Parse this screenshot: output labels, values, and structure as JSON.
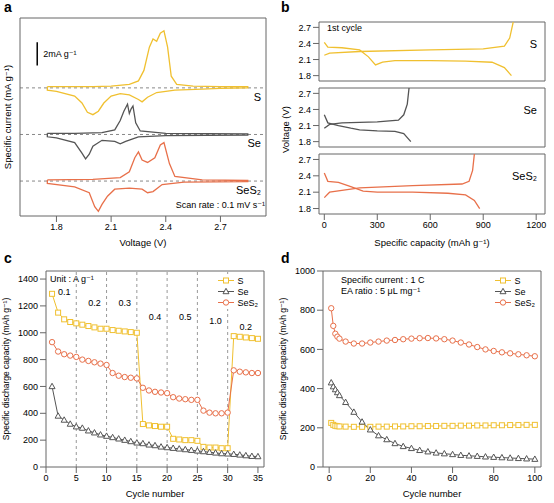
{
  "chart_data": [
    {
      "panel": "a",
      "type": "line",
      "x_label": "Voltage (V)",
      "y_label": "Specific current (mA g⁻¹)",
      "xlim": [
        1.6,
        2.95
      ],
      "xticks": [
        1.8,
        2.1,
        2.4,
        2.7
      ],
      "ylim": [
        -7,
        10
      ],
      "tick_labels": "x",
      "annotation": "Scan rate : 0.1 mV s⁻¹",
      "scale_bar": {
        "label": "2mA g⁻¹",
        "value": 2
      },
      "series": [
        {
          "name": "S",
          "color": "#f0c030",
          "baseline": 4,
          "x": [
            1.75,
            1.9,
            2.0,
            2.1,
            2.2,
            2.25,
            2.28,
            2.31,
            2.33,
            2.35,
            2.37,
            2.39,
            2.41,
            2.43,
            2.46,
            2.55,
            2.7,
            2.85,
            2.85,
            2.7,
            2.6,
            2.45,
            2.35,
            2.3,
            2.27,
            2.25,
            2.2,
            2.15,
            2.1,
            2.06,
            2.03,
            2.0,
            1.97,
            1.94,
            1.9,
            1.8,
            1.75,
            1.75
          ],
          "values": [
            4.1,
            4.1,
            4.1,
            4.15,
            4.3,
            4.6,
            5.5,
            7.5,
            8.2,
            8.0,
            8.7,
            8.9,
            7.5,
            5.0,
            4.3,
            4.15,
            4.1,
            4.1,
            4.0,
            3.95,
            3.9,
            3.8,
            3.6,
            3.2,
            2.8,
            3.0,
            3.4,
            3.5,
            3.3,
            2.7,
            2.0,
            1.7,
            1.9,
            2.7,
            3.3,
            3.7,
            3.8,
            4.1
          ]
        },
        {
          "name": "Se",
          "color": "#555555",
          "baseline": 0,
          "x": [
            1.75,
            1.9,
            2.05,
            2.12,
            2.15,
            2.17,
            2.19,
            2.2,
            2.21,
            2.22,
            2.235,
            2.26,
            2.4,
            2.85,
            2.85,
            2.4,
            2.25,
            2.18,
            2.15,
            2.12,
            2.05,
            2.0,
            1.98,
            1.96,
            1.94,
            1.9,
            1.8,
            1.75,
            1.75
          ],
          "values": [
            0.1,
            0.1,
            0.15,
            0.4,
            1.2,
            2.0,
            2.6,
            1.8,
            2.2,
            2.45,
            1.0,
            0.3,
            0.1,
            0.05,
            -0.05,
            -0.1,
            -0.2,
            -0.6,
            -0.8,
            -0.6,
            -0.5,
            -1.0,
            -1.7,
            -2.1,
            -1.6,
            -0.7,
            -0.3,
            -0.2,
            0.1
          ]
        },
        {
          "name": "SeS₂",
          "color": "#e8704a",
          "baseline": -4,
          "x": [
            1.75,
            2.0,
            2.15,
            2.2,
            2.23,
            2.25,
            2.27,
            2.3,
            2.34,
            2.37,
            2.39,
            2.42,
            2.45,
            2.6,
            2.85,
            2.85,
            2.5,
            2.38,
            2.33,
            2.3,
            2.27,
            2.2,
            2.12,
            2.08,
            2.05,
            2.03,
            2.01,
            1.98,
            1.9,
            1.75,
            1.75
          ],
          "values": [
            -3.9,
            -3.85,
            -3.7,
            -3.2,
            -2.0,
            -1.5,
            -2.2,
            -2.4,
            -2.0,
            -0.9,
            -0.7,
            -2.5,
            -3.6,
            -3.9,
            -3.95,
            -4.05,
            -4.1,
            -4.3,
            -4.9,
            -5.0,
            -4.7,
            -4.6,
            -4.7,
            -5.3,
            -6.0,
            -6.6,
            -6.2,
            -5.0,
            -4.5,
            -4.2,
            -3.9
          ]
        }
      ]
    },
    {
      "panel": "b",
      "type": "line",
      "annotation": "1st cycle",
      "x_label": "Specific capacity (mAh g⁻¹)",
      "y_label": "Voltage (V)",
      "xlim": [
        -30,
        1250
      ],
      "xticks": [
        0,
        300,
        600,
        900,
        1200
      ],
      "ylim": [
        1.7,
        2.8
      ],
      "yticks": [
        1.8,
        2.1,
        2.4,
        2.7
      ],
      "series": [
        {
          "name": "S",
          "color": "#f0c030",
          "curves": [
            {
              "x": [
                0,
                20,
                100,
                200,
                250,
                290,
                330,
                400,
                600,
                800,
                950,
                1020,
                1060
              ],
              "values": [
                2.42,
                2.33,
                2.32,
                2.28,
                2.15,
                2.0,
                2.05,
                2.08,
                2.08,
                2.07,
                2.05,
                1.95,
                1.8
              ]
            },
            {
              "x": [
                0,
                30,
                200,
                600,
                900,
                1020,
                1050,
                1070
              ],
              "values": [
                2.18,
                2.22,
                2.25,
                2.28,
                2.3,
                2.35,
                2.5,
                2.8
              ]
            }
          ]
        },
        {
          "name": "Se",
          "color": "#555555",
          "curves": [
            {
              "x": [
                0,
                20,
                80,
                150,
                200,
                300,
                400,
                450,
                490
              ],
              "values": [
                2.3,
                2.15,
                2.1,
                2.05,
                2.02,
                2.0,
                1.99,
                1.95,
                1.8
              ]
            },
            {
              "x": [
                0,
                30,
                100,
                300,
                420,
                450,
                470,
                480
              ],
              "values": [
                2.05,
                2.12,
                2.15,
                2.17,
                2.2,
                2.3,
                2.5,
                2.8
              ]
            }
          ]
        },
        {
          "name": "SeS₂",
          "color": "#e8704a",
          "curves": [
            {
              "x": [
                0,
                20,
                80,
                150,
                220,
                300,
                500,
                700,
                800,
                850,
                880
              ],
              "values": [
                2.45,
                2.3,
                2.28,
                2.2,
                2.12,
                2.1,
                2.1,
                2.08,
                2.05,
                1.95,
                1.8
              ]
            },
            {
              "x": [
                0,
                30,
                200,
                500,
                780,
                820,
                840,
                850
              ],
              "values": [
                2.0,
                2.1,
                2.18,
                2.22,
                2.25,
                2.3,
                2.5,
                2.8
              ]
            }
          ]
        }
      ]
    },
    {
      "panel": "c",
      "type": "line",
      "x_label": "Cycle number",
      "y_label": "Specific discharge capacity (mAh g⁻¹)",
      "xlim": [
        0,
        36
      ],
      "xticks": [
        0,
        5,
        10,
        15,
        20,
        25,
        30,
        35
      ],
      "ylim": [
        0,
        1460
      ],
      "yticks": [
        0,
        200,
        400,
        600,
        800,
        1000,
        1200,
        1400
      ],
      "legend": "top-right",
      "annotation": "Unit : A g⁻¹",
      "rate_labels": [
        {
          "label": "0.1",
          "cycles": [
            1,
            5
          ]
        },
        {
          "label": "0.2",
          "cycles": [
            6,
            10
          ]
        },
        {
          "label": "0.3",
          "cycles": [
            11,
            15
          ]
        },
        {
          "label": "0.4",
          "cycles": [
            16,
            20
          ]
        },
        {
          "label": "0.5",
          "cycles": [
            21,
            25
          ]
        },
        {
          "label": "1.0",
          "cycles": [
            26,
            30
          ]
        },
        {
          "label": "0.2",
          "cycles": [
            31,
            35
          ]
        }
      ],
      "dividers": [
        5,
        10,
        15,
        20,
        25,
        30
      ],
      "x": [
        1,
        2,
        3,
        4,
        5,
        6,
        7,
        8,
        9,
        10,
        11,
        12,
        13,
        14,
        15,
        16,
        17,
        18,
        19,
        20,
        21,
        22,
        23,
        24,
        25,
        26,
        27,
        28,
        29,
        30,
        31,
        32,
        33,
        34,
        35
      ],
      "series": [
        {
          "name": "S",
          "color": "#f0c030",
          "marker": "square",
          "line_style": "solid",
          "values": [
            1290,
            1150,
            1100,
            1080,
            1070,
            1060,
            1050,
            1040,
            1030,
            1030,
            1020,
            1015,
            1010,
            1005,
            1000,
            320,
            310,
            305,
            300,
            300,
            210,
            205,
            200,
            200,
            195,
            150,
            145,
            145,
            140,
            140,
            975,
            970,
            965,
            960,
            955
          ]
        },
        {
          "name": "Se",
          "color": "#555555",
          "marker": "triangle",
          "line_style": "solid",
          "values": [
            600,
            380,
            350,
            320,
            300,
            290,
            270,
            255,
            240,
            230,
            220,
            210,
            200,
            190,
            180,
            175,
            165,
            160,
            150,
            145,
            140,
            135,
            130,
            125,
            120,
            115,
            110,
            105,
            100,
            98,
            95,
            90,
            85,
            80,
            78
          ]
        },
        {
          "name": "SeS₂",
          "color": "#e8704a",
          "marker": "circle",
          "line_style": "solid",
          "values": [
            930,
            860,
            840,
            830,
            820,
            800,
            790,
            780,
            770,
            760,
            700,
            680,
            670,
            665,
            660,
            590,
            570,
            560,
            555,
            550,
            520,
            510,
            505,
            500,
            500,
            420,
            405,
            400,
            400,
            405,
            720,
            710,
            705,
            700,
            700
          ]
        }
      ]
    },
    {
      "panel": "d",
      "type": "line",
      "x_label": "Cycle number",
      "y_label": "Specific discharge capacity (mAh g⁻¹)",
      "xlim": [
        -3,
        103
      ],
      "xticks": [
        0,
        20,
        40,
        60,
        80,
        100
      ],
      "ylim": [
        0,
        1000
      ],
      "yticks": [
        0,
        200,
        400,
        600,
        800,
        1000
      ],
      "legend": "top-right",
      "annotations": [
        "Specific current : 1 C",
        "EA ratio : 5 μL mg⁻¹"
      ],
      "x": [
        1,
        2,
        3,
        4,
        5,
        8,
        12,
        16,
        20,
        24,
        28,
        32,
        36,
        40,
        44,
        48,
        52,
        56,
        60,
        64,
        68,
        72,
        76,
        80,
        84,
        88,
        92,
        96,
        100
      ],
      "series": [
        {
          "name": "S",
          "color": "#f0c030",
          "marker": "square",
          "line_style": "solid",
          "values": [
            225,
            215,
            210,
            208,
            207,
            206,
            205,
            205,
            205,
            206,
            206,
            207,
            207,
            208,
            208,
            209,
            209,
            210,
            210,
            211,
            211,
            212,
            212,
            213,
            213,
            214,
            214,
            215,
            215
          ]
        },
        {
          "name": "Se",
          "color": "#555555",
          "marker": "triangle",
          "line_style": "solid",
          "values": [
            430,
            410,
            395,
            380,
            365,
            330,
            280,
            230,
            190,
            160,
            140,
            120,
            105,
            95,
            85,
            78,
            72,
            68,
            64,
            60,
            57,
            55,
            52,
            50,
            48,
            46,
            44,
            42,
            40
          ]
        },
        {
          "name": "SeS₂",
          "color": "#e8704a",
          "marker": "circle",
          "line_style": "solid",
          "values": [
            810,
            720,
            680,
            665,
            655,
            640,
            630,
            630,
            635,
            640,
            645,
            648,
            652,
            655,
            657,
            658,
            656,
            652,
            645,
            635,
            625,
            612,
            600,
            592,
            585,
            580,
            575,
            570,
            565
          ]
        }
      ]
    }
  ]
}
